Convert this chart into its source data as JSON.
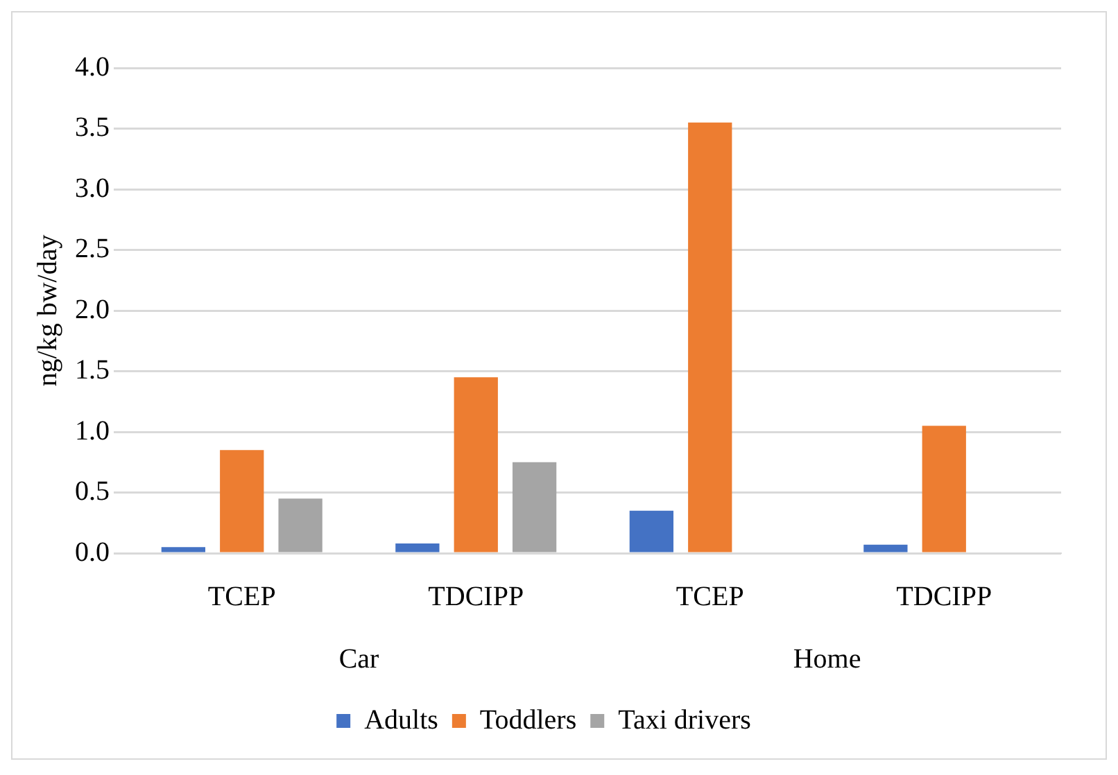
{
  "chart_data": {
    "type": "bar",
    "ylabel": "ng/kg bw/day",
    "categories": [
      "TCEP",
      "TDCIPP",
      "TCEP",
      "TDCIPP"
    ],
    "series": [
      {
        "name": "Adults",
        "color": "#4472c4",
        "values": [
          0.05,
          0.08,
          0.35,
          0.07
        ]
      },
      {
        "name": "Toddlers",
        "color": "#ed7d31",
        "values": [
          0.85,
          1.45,
          3.55,
          1.05
        ]
      },
      {
        "name": "Taxi drivers",
        "color": "#a5a5a5",
        "values": [
          0.45,
          0.75,
          null,
          null
        ]
      }
    ],
    "annotations": [
      "Car",
      "Home"
    ],
    "ylim": [
      0,
      4
    ],
    "yticks": [
      {
        "value": 0,
        "label": "0.0"
      },
      {
        "value": 0.5,
        "label": "0.5"
      },
      {
        "value": 1,
        "label": "1.0"
      },
      {
        "value": 1.5,
        "label": "1.5"
      },
      {
        "value": 2,
        "label": "2.0"
      },
      {
        "value": 2.5,
        "label": "2.5"
      },
      {
        "value": 3,
        "label": "3.0"
      },
      {
        "value": 3.5,
        "label": "3.5"
      },
      {
        "value": 4,
        "label": "4.0"
      }
    ],
    "grid": "y",
    "legend": "bottom"
  }
}
